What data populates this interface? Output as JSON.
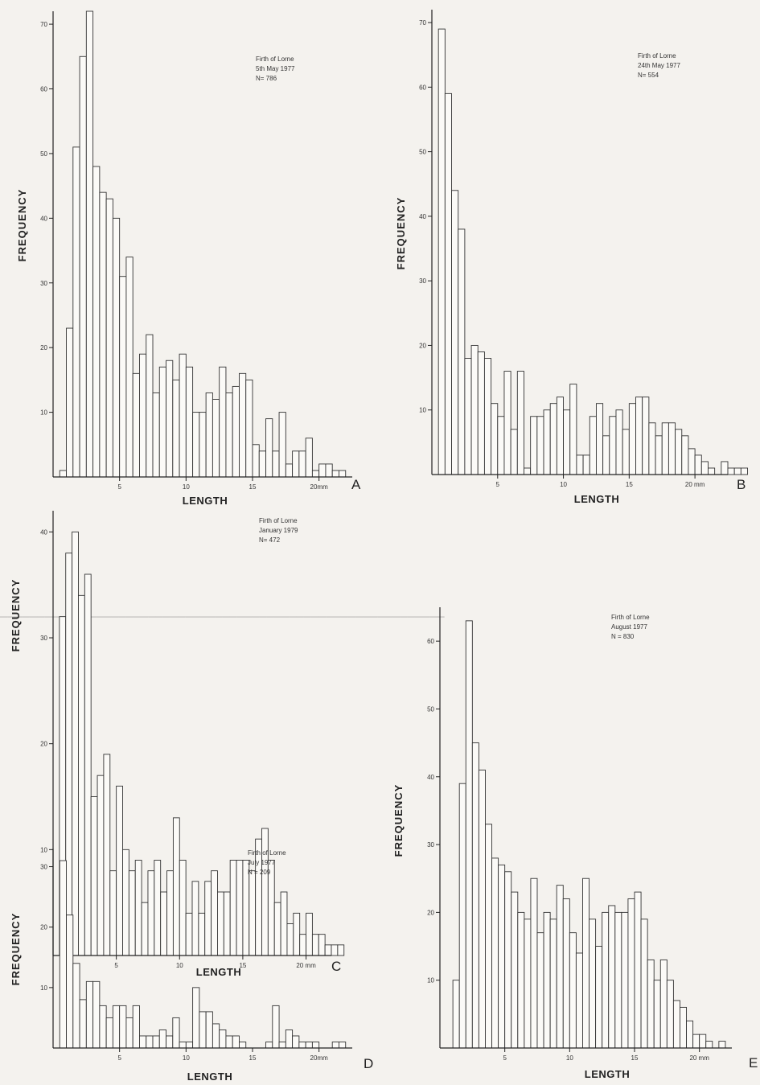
{
  "chart_data": [
    {
      "panel": "A",
      "type": "bar",
      "annotation": [
        "Firth of Lorne",
        "5th May 1977",
        "N= 786"
      ],
      "xlabel": "LENGTH",
      "ylabel": "FREQUENCY",
      "x_ticks": [
        "5",
        "10",
        "15",
        "20mm"
      ],
      "y_ticks": [
        "10",
        "20",
        "30",
        "40",
        "50",
        "60",
        "70"
      ],
      "xlim": [
        0,
        22.5
      ],
      "ylim": [
        0,
        72
      ],
      "bin_width_mm": 0.5,
      "values": [
        1,
        23,
        51,
        65,
        72,
        48,
        44,
        43,
        40,
        31,
        34,
        16,
        19,
        22,
        13,
        17,
        18,
        15,
        19,
        17,
        10,
        10,
        13,
        12,
        17,
        13,
        14,
        16,
        15,
        5,
        4,
        9,
        4,
        10,
        2,
        4,
        4,
        6,
        1,
        2,
        2,
        1,
        1
      ]
    },
    {
      "panel": "B",
      "type": "bar",
      "annotation": [
        "Firth of Lorne",
        "24th May 1977",
        "N= 554"
      ],
      "xlabel": "LENGTH",
      "ylabel": "FREQUENCY",
      "x_ticks": [
        "5",
        "10",
        "15",
        "20 mm"
      ],
      "y_ticks": [
        "10",
        "20",
        "30",
        "40",
        "50",
        "60",
        "70"
      ],
      "xlim": [
        0,
        22.5
      ],
      "ylim": [
        0,
        72
      ],
      "bin_width_mm": 0.5,
      "values": [
        69,
        59,
        44,
        38,
        18,
        20,
        19,
        18,
        11,
        9,
        16,
        7,
        16,
        1,
        9,
        9,
        10,
        11,
        12,
        10,
        14,
        3,
        3,
        9,
        11,
        6,
        9,
        10,
        7,
        11,
        12,
        12,
        8,
        6,
        8,
        8,
        7,
        6,
        4,
        3,
        2,
        1,
        0,
        2,
        1,
        1,
        1
      ]
    },
    {
      "panel": "C",
      "type": "bar",
      "annotation": [
        "Firth of Lorne",
        "January 1979",
        "N= 472"
      ],
      "xlabel": "LENGTH",
      "ylabel": "FREQUENCY",
      "x_ticks": [
        "5",
        "10",
        "15",
        "20 mm"
      ],
      "y_ticks": [
        "10",
        "20",
        "30",
        "40"
      ],
      "xlim": [
        0,
        22
      ],
      "ylim": [
        0,
        42
      ],
      "bin_width_mm": 0.5,
      "values": [
        32,
        38,
        40,
        34,
        36,
        15,
        17,
        19,
        8,
        16,
        10,
        8,
        9,
        5,
        8,
        9,
        6,
        8,
        13,
        9,
        4,
        7,
        4,
        7,
        8,
        6,
        6,
        9,
        9,
        9,
        8,
        11,
        12,
        9,
        5,
        6,
        3,
        4,
        2,
        4,
        2,
        2,
        1,
        1,
        1
      ]
    },
    {
      "panel": "D",
      "type": "bar",
      "annotation": [
        "Firth of Lorne",
        "July 1977",
        "N = 209"
      ],
      "xlabel": "LENGTH",
      "ylabel": "FREQUENCY",
      "x_ticks": [
        "5",
        "10",
        "15",
        "20mm"
      ],
      "y_ticks": [
        "10",
        "20",
        "30"
      ],
      "xlim": [
        0,
        22.5
      ],
      "ylim": [
        0,
        33
      ],
      "bin_width_mm": 0.5,
      "values": [
        31,
        22,
        14,
        8,
        11,
        11,
        7,
        5,
        7,
        7,
        5,
        7,
        2,
        2,
        2,
        3,
        2,
        5,
        1,
        1,
        10,
        6,
        6,
        4,
        3,
        2,
        2,
        1,
        0,
        0,
        0,
        1,
        7,
        1,
        3,
        2,
        1,
        1,
        1,
        0,
        0,
        1,
        1
      ]
    },
    {
      "panel": "E",
      "type": "bar",
      "annotation": [
        "Firth of Lorne",
        "August 1977",
        "N = 830"
      ],
      "xlabel": "LENGTH",
      "ylabel": "FREQUENCY",
      "x_ticks": [
        "5",
        "10",
        "15",
        "20 mm"
      ],
      "y_ticks": [
        "10",
        "20",
        "30",
        "40",
        "50",
        "60"
      ],
      "xlim": [
        0,
        22.5
      ],
      "ylim": [
        0,
        65
      ],
      "bin_width_mm": 0.5,
      "values": [
        0,
        10,
        39,
        63,
        45,
        41,
        33,
        28,
        27,
        26,
        23,
        20,
        19,
        25,
        17,
        20,
        19,
        24,
        22,
        17,
        14,
        25,
        19,
        15,
        20,
        21,
        20,
        20,
        22,
        23,
        19,
        13,
        10,
        13,
        10,
        7,
        6,
        4,
        2,
        2,
        1,
        0,
        1
      ]
    }
  ]
}
